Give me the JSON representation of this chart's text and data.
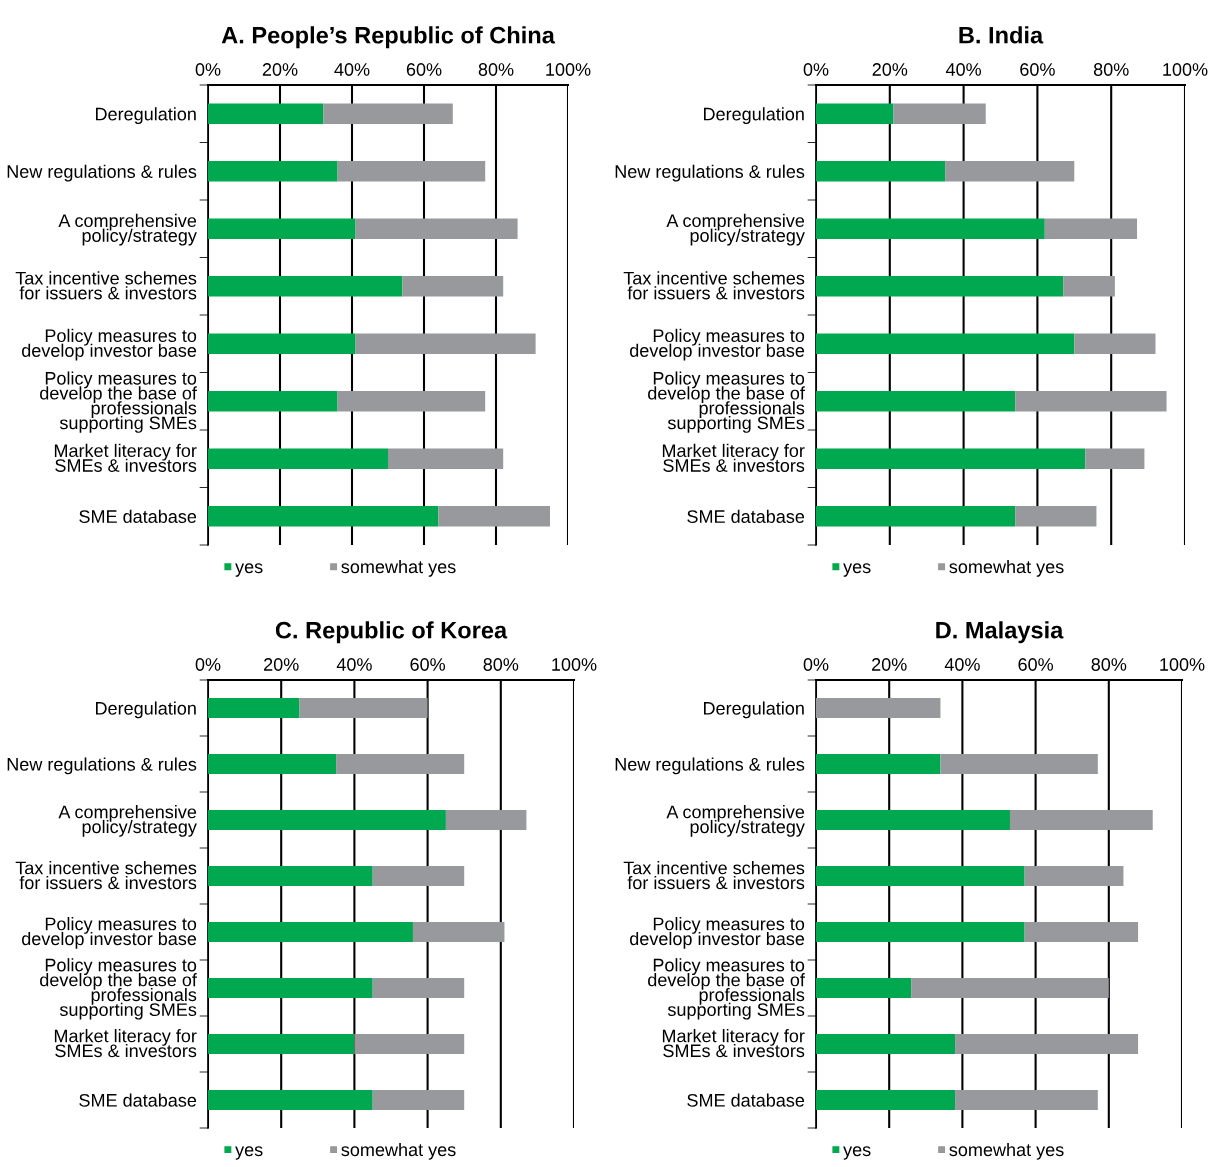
{
  "chart_data": [
    {
      "type": "bar",
      "title": "A. People’s Republic of China",
      "orientation": "horizontal",
      "stacked": true,
      "grid": "x",
      "legend": "bottom",
      "categories": [
        "Deregulation",
        "New regulations & rules",
        "A comprehensive\npolicy/strategy",
        "Tax incentive schemes\nfor issuers & investors",
        "Policy measures to\ndevelop investor base",
        "Policy measures to\ndevelop the base of\nprofessionals\nsupporting SMEs",
        "Market literacy for\nSMEs & investors",
        "SME database"
      ],
      "xlim": [
        0,
        100
      ],
      "xticks": [
        {
          "value": 0,
          "label": "0%"
        },
        {
          "value": 20,
          "label": "20%"
        },
        {
          "value": 40,
          "label": "40%"
        },
        {
          "value": 60,
          "label": "60%"
        },
        {
          "value": 80,
          "label": "80%"
        },
        {
          "value": 100,
          "label": "100%"
        }
      ],
      "series": [
        {
          "name": "yes",
          "color": "#00a94f",
          "values": [
            32,
            36,
            41,
            54,
            41,
            36,
            50,
            64
          ]
        },
        {
          "name": "somewhat yes",
          "color": "#98999c",
          "values": [
            36,
            41,
            45,
            28,
            50,
            41,
            32,
            31
          ]
        }
      ]
    },
    {
      "type": "bar",
      "title": "B. India",
      "orientation": "horizontal",
      "stacked": true,
      "grid": "x",
      "legend": "bottom",
      "categories": [
        "Deregulation",
        "New regulations & rules",
        "A comprehensive\npolicy/strategy",
        "Tax incentive schemes\nfor issuers & investors",
        "Policy measures to\ndevelop investor base",
        "Policy measures to\ndevelop the base of\nprofessionals\nsupporting SMEs",
        "Market literacy for\nSMEs & investors",
        "SME database"
      ],
      "xlim": [
        0,
        100
      ],
      "xticks": [
        {
          "value": 0,
          "label": "0%"
        },
        {
          "value": 20,
          "label": "20%"
        },
        {
          "value": 40,
          "label": "40%"
        },
        {
          "value": 60,
          "label": "60%"
        },
        {
          "value": 80,
          "label": "80%"
        },
        {
          "value": 100,
          "label": "100%"
        }
      ],
      "series": [
        {
          "name": "yes",
          "color": "#00a94f",
          "values": [
            21,
            35,
            62,
            67,
            70,
            54,
            73,
            54
          ]
        },
        {
          "name": "somewhat yes",
          "color": "#98999c",
          "values": [
            25,
            35,
            25,
            14,
            22,
            41,
            16,
            22
          ]
        }
      ]
    },
    {
      "type": "bar",
      "title": "C. Republic of Korea",
      "orientation": "horizontal",
      "stacked": true,
      "grid": "x",
      "legend": "bottom",
      "categories": [
        "Deregulation",
        "New regulations & rules",
        "A comprehensive\npolicy/strategy",
        "Tax incentive schemes\nfor issuers & investors",
        "Policy measures to\ndevelop investor base",
        "Policy measures to\ndevelop the base of\nprofessionals\nsupporting SMEs",
        "Market literacy for\nSMEs & investors",
        "SME database"
      ],
      "xlim": [
        0,
        100
      ],
      "xticks": [
        {
          "value": 0,
          "label": "0%"
        },
        {
          "value": 20,
          "label": "20%"
        },
        {
          "value": 40,
          "label": "40%"
        },
        {
          "value": 60,
          "label": "60%"
        },
        {
          "value": 80,
          "label": "80%"
        },
        {
          "value": 100,
          "label": "100%"
        }
      ],
      "series": [
        {
          "name": "yes",
          "color": "#00a94f",
          "values": [
            25,
            35,
            65,
            45,
            56,
            45,
            40,
            45
          ]
        },
        {
          "name": "somewhat yes",
          "color": "#98999c",
          "values": [
            35,
            35,
            22,
            25,
            25,
            25,
            30,
            25
          ]
        }
      ]
    },
    {
      "type": "bar",
      "title": "D. Malaysia",
      "orientation": "horizontal",
      "stacked": true,
      "grid": "x",
      "legend": "bottom",
      "categories": [
        "Deregulation",
        "New regulations & rules",
        "A comprehensive\npolicy/strategy",
        "Tax incentive schemes\nfor issuers & investors",
        "Policy measures to\ndevelop investor base",
        "Policy measures to\ndevelop the base of\nprofessionals\nsupporting SMEs",
        "Market literacy for\nSMEs & investors",
        "SME database"
      ],
      "xlim": [
        0,
        100
      ],
      "xticks": [
        {
          "value": 0,
          "label": "0%"
        },
        {
          "value": 20,
          "label": "20%"
        },
        {
          "value": 40,
          "label": "40%"
        },
        {
          "value": 60,
          "label": "60%"
        },
        {
          "value": 80,
          "label": "80%"
        },
        {
          "value": 100,
          "label": "100%"
        }
      ],
      "series": [
        {
          "name": "yes",
          "color": "#00a94f",
          "values": [
            0,
            34,
            53,
            57,
            57,
            26,
            38,
            38
          ]
        },
        {
          "name": "somewhat yes",
          "color": "#98999c",
          "values": [
            34,
            43,
            39,
            27,
            31,
            54,
            50,
            39
          ]
        }
      ]
    }
  ]
}
